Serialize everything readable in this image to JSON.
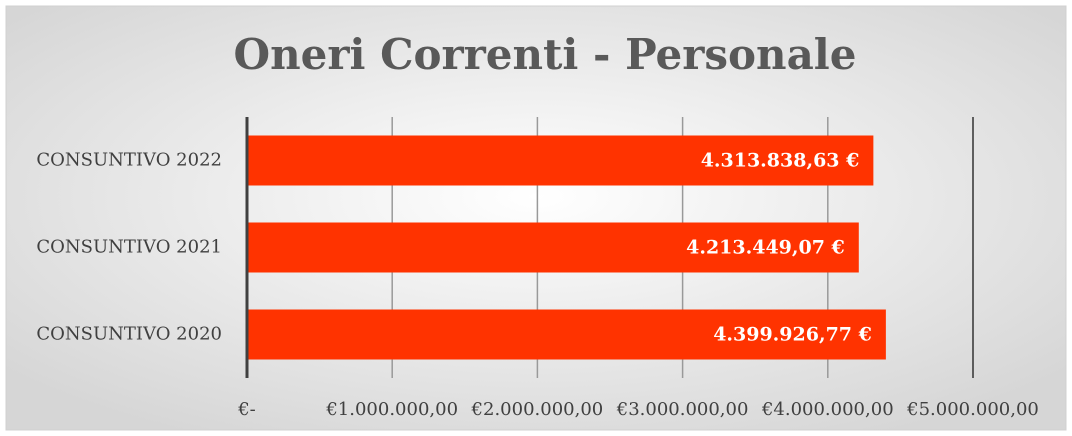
{
  "chart_data": {
    "type": "bar",
    "orientation": "horizontal",
    "title": "Oneri Correnti - Personale",
    "categories": [
      "CONSUNTIVO 2022",
      "CONSUNTIVO 2021",
      "CONSUNTIVO 2020"
    ],
    "values": [
      4313838.63,
      4213449.07,
      4399926.77
    ],
    "value_labels": [
      "4.313.838,63 €",
      "4.213.449,07 €",
      "4.399.926,77 €"
    ],
    "color": "#ff3300",
    "xlim": [
      0,
      5000000
    ],
    "xticks": [
      {
        "value": 0,
        "label": "€-"
      },
      {
        "value": 1000000,
        "label": "€1.000.000,00"
      },
      {
        "value": 2000000,
        "label": "€2.000.000,00"
      },
      {
        "value": 3000000,
        "label": "€3.000.000,00"
      },
      {
        "value": 4000000,
        "label": "€4.000.000,00"
      },
      {
        "value": 5000000,
        "label": "€5.000.000,00"
      }
    ],
    "grid": true
  }
}
